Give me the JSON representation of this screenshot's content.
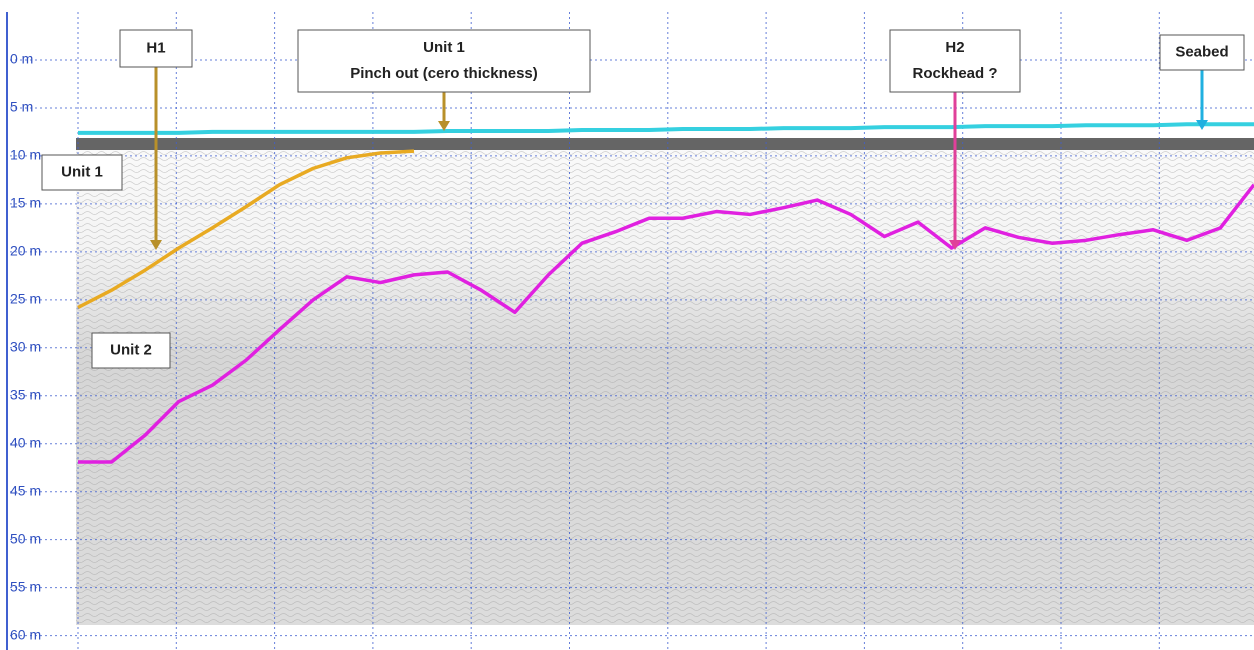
{
  "chart_data": {
    "type": "line",
    "categories": [
      null,
      null,
      null,
      null,
      null,
      null,
      null,
      null,
      null,
      null,
      null,
      null,
      null,
      null,
      null,
      null,
      null,
      null,
      null,
      null,
      null,
      null,
      null,
      null,
      null,
      null,
      null,
      null,
      null,
      null,
      null,
      null,
      null,
      null,
      null,
      null
    ],
    "series": [
      {
        "name": "Seabed",
        "color": "#35d0e0",
        "values": [
          7.6,
          7.6,
          7.6,
          7.6,
          7.5,
          7.5,
          7.5,
          7.5,
          7.5,
          7.5,
          7.5,
          7.4,
          7.4,
          7.4,
          7.4,
          7.3,
          7.3,
          7.3,
          7.2,
          7.2,
          7.2,
          7.1,
          7.1,
          7.1,
          7.0,
          7.0,
          7.0,
          6.9,
          6.9,
          6.9,
          6.8,
          6.8,
          6.8,
          6.7,
          6.7,
          6.7
        ]
      },
      {
        "name": "H1",
        "color": "#e8aa22",
        "values": [
          25.8,
          24.0,
          21.9,
          19.6,
          17.5,
          15.3,
          13.0,
          11.3,
          10.2,
          9.7,
          9.5,
          null,
          null,
          null,
          null,
          null,
          null,
          null,
          null,
          null,
          null,
          null,
          null,
          null,
          null,
          null,
          null,
          null,
          null,
          null,
          null,
          null,
          null,
          null,
          null,
          null
        ]
      },
      {
        "name": "H2",
        "color": "#e020e0",
        "values": [
          41.9,
          41.9,
          39.1,
          35.6,
          33.9,
          31.3,
          28.1,
          25.0,
          22.6,
          23.2,
          22.4,
          22.1,
          24.0,
          26.3,
          22.4,
          19.1,
          17.9,
          16.5,
          16.5,
          15.8,
          16.1,
          15.4,
          14.6,
          16.1,
          18.4,
          16.9,
          19.6,
          17.5,
          18.5,
          19.1,
          18.8,
          18.2,
          17.7,
          18.8,
          17.5,
          13.0
        ]
      }
    ],
    "ylim": [
      -5,
      61.5
    ],
    "yticks": [
      {
        "value": 0,
        "label": "0 m"
      },
      {
        "value": 5,
        "label": "5 m"
      },
      {
        "value": 10,
        "label": "10 m"
      },
      {
        "value": 15,
        "label": "15 m"
      },
      {
        "value": 20,
        "label": "20 m"
      },
      {
        "value": 25,
        "label": "25 m"
      },
      {
        "value": 30,
        "label": "30 m"
      },
      {
        "value": 35,
        "label": "35 m"
      },
      {
        "value": 40,
        "label": "40 m"
      },
      {
        "value": 45,
        "label": "45 m"
      },
      {
        "value": 50,
        "label": "50 m"
      },
      {
        "value": 55,
        "label": "55 m"
      },
      {
        "value": 60,
        "label": "60 m"
      }
    ],
    "grid": true,
    "annotations": [
      [
        "H1"
      ],
      [
        "Unit 1",
        "Pinch out (cero thickness)"
      ],
      [
        "H2",
        "Rockhead ?"
      ],
      [
        "Seabed"
      ],
      [
        "Unit 1"
      ],
      [
        "Unit 2"
      ]
    ]
  }
}
